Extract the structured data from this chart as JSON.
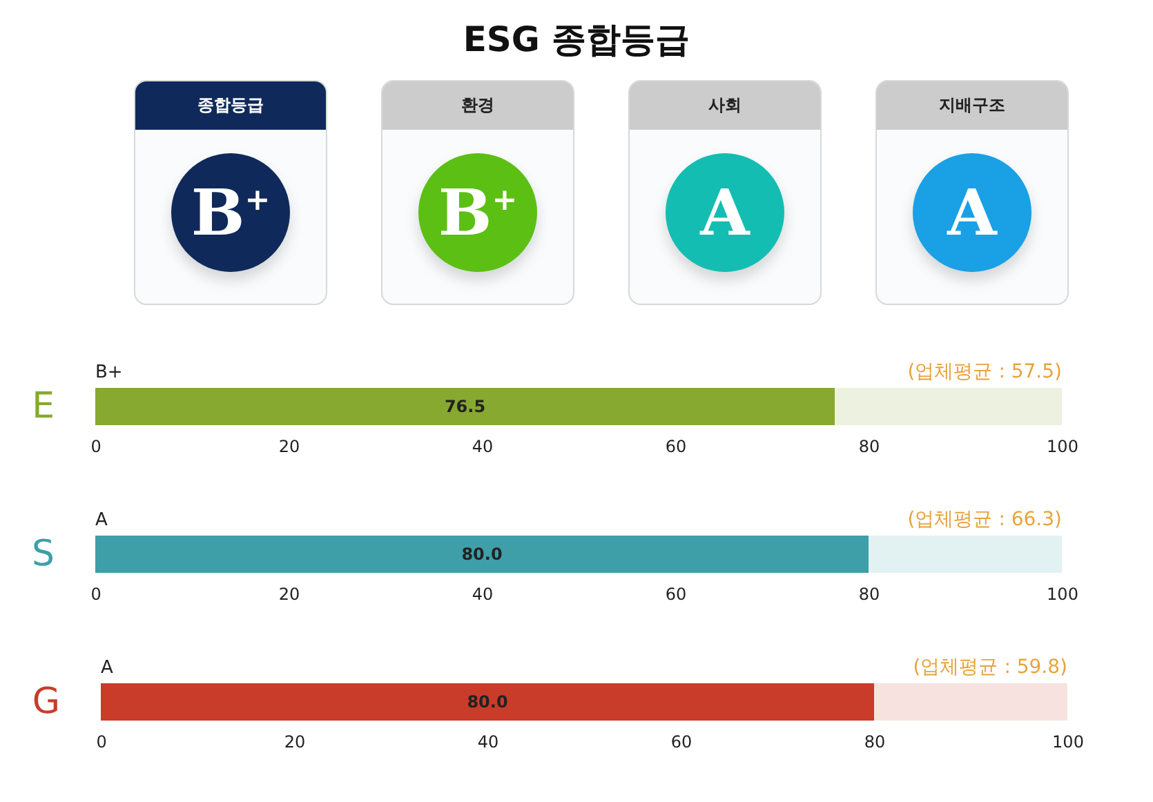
{
  "chart_data": [
    {
      "type": "other",
      "title": "ESG 종합등급",
      "categories": [
        "B$^{+}$",
        "B$^{+}$",
        "A",
        "A"
      ],
      "annotations": [
        "종합등급",
        "환경",
        "사회",
        "지배구조"
      ],
      "colors": [
        "#0f2a5a",
        "#5cbf13",
        "#14bdb1",
        "#1aa0e4"
      ]
    },
    {
      "type": "bar",
      "orientation": "horizontal",
      "categories": [
        "E"
      ],
      "values": [
        76.5
      ],
      "value_labels": [
        "76.5"
      ],
      "color": "#87a92f",
      "xlim": [
        0,
        100
      ],
      "xticks": [
        0,
        20,
        40,
        60,
        80,
        100
      ],
      "annotations": [
        "B+",
        "(업체평균 : 57.5)"
      ]
    },
    {
      "type": "bar",
      "orientation": "horizontal",
      "categories": [
        "S"
      ],
      "values": [
        80.0
      ],
      "value_labels": [
        "80.0"
      ],
      "color": "#3e9fa8",
      "xlim": [
        0,
        100
      ],
      "xticks": [
        0,
        20,
        40,
        60,
        80,
        100
      ],
      "annotations": [
        "A",
        "(업체평균 : 66.3)"
      ]
    },
    {
      "type": "bar",
      "orientation": "horizontal",
      "categories": [
        "G"
      ],
      "values": [
        80.0
      ],
      "value_labels": [
        "80.0"
      ],
      "color": "#c93c2a",
      "xlim": [
        0,
        100
      ],
      "xticks": [
        0,
        20,
        40,
        60,
        80,
        100
      ],
      "annotations": [
        "A",
        "(업체평균 : 59.8)"
      ]
    }
  ]
}
